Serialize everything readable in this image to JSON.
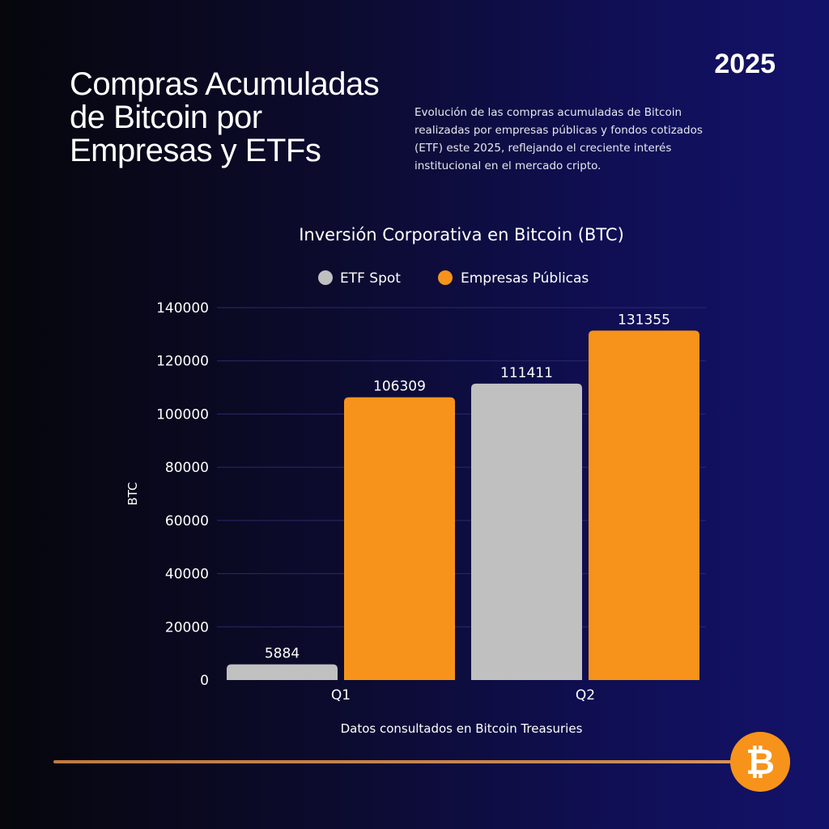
{
  "header": {
    "title": "Compras Acumuladas\nde Bitcoin por\nEmpresas y ETFs",
    "year": "2025",
    "description": "Evolución de las compras acumuladas de Bitcoin realizadas por empresas públicas y fondos cotizados (ETF) este 2025, reflejando el creciente interés institucional en el mercado cripto."
  },
  "chart_data": {
    "type": "bar",
    "title": "Inversión Corporativa en Bitcoin (BTC)",
    "categories": [
      "Q1",
      "Q2"
    ],
    "series": [
      {
        "name": "ETF Spot",
        "values": [
          5884,
          111411
        ],
        "color": "#c0c0c0"
      },
      {
        "name": "Empresas Públicas",
        "values": [
          106309,
          131355
        ],
        "color": "#f7931a"
      }
    ],
    "xlabel": "",
    "ylabel": "BTC",
    "ylim": [
      0,
      140000
    ],
    "yticks": [
      0,
      20000,
      40000,
      60000,
      80000,
      100000,
      120000,
      140000
    ],
    "grid": true,
    "legend": "top",
    "source_note": "Datos consultados en Bitcoin Treasuries"
  },
  "colors": {
    "accent": "#f7931a",
    "etf": "#c0c0c0",
    "background": "#0c0b2e"
  },
  "logo": {
    "icon": "bitcoin-icon",
    "glyph": "₿"
  }
}
